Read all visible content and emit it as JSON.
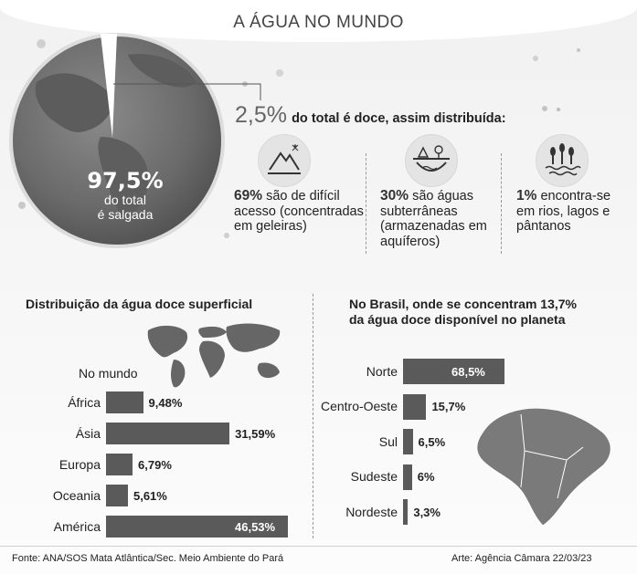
{
  "title": "A ÁGUA NO MUNDO",
  "globe": {
    "percent": "97,5%",
    "line1": "do total",
    "line2": "é salgada"
  },
  "headline": {
    "percent": "2,5%",
    "text": "do total é doce, assim distribuída:"
  },
  "categories": [
    {
      "icon": "glacier-icon",
      "pct": "69%",
      "lines": [
        "são de difícil",
        "acesso (concentradas",
        "em geleiras)"
      ]
    },
    {
      "icon": "aquifer-icon",
      "pct": "30%",
      "lines": [
        "são águas",
        "subterrâneas",
        "(armazenadas em",
        "aquíferos)"
      ]
    },
    {
      "icon": "wetland-icon",
      "pct": "1%",
      "lines": [
        "encontra-se",
        "em rios, lagos e",
        "pântanos"
      ]
    }
  ],
  "left_panel": {
    "title": "Distribuição da água doce superficial",
    "subtitle": "No mundo",
    "map_icon": "world-map-icon"
  },
  "right_panel": {
    "title_line1": "No Brasil, onde se concentram 13,7%",
    "title_line2": "da água doce disponível no planeta",
    "map_icon": "brazil-map-icon"
  },
  "chart_data": [
    {
      "type": "bar",
      "orientation": "horizontal",
      "title": "Distribuição da água doce superficial",
      "subtitle": "No mundo",
      "categories": [
        "África",
        "Ásia",
        "Europa",
        "Oceania",
        "América"
      ],
      "values": [
        9.48,
        31.59,
        6.79,
        5.61,
        46.53
      ],
      "labels": [
        "9,48%",
        "31,59%",
        "6,79%",
        "5,61%",
        "46,53%"
      ],
      "unit": "%"
    },
    {
      "type": "bar",
      "orientation": "horizontal",
      "title": "No Brasil, onde se concentram 13,7% da água doce disponível no planeta",
      "categories": [
        "Norte",
        "Centro-Oeste",
        "Sul",
        "Sudeste",
        "Nordeste"
      ],
      "values": [
        68.5,
        15.7,
        6.5,
        6,
        3.3
      ],
      "labels": [
        "68,5%",
        "15,7%",
        "6,5%",
        "6%",
        "3,3%"
      ],
      "unit": "%"
    }
  ],
  "footer": {
    "source": "Fonte: ANA/SOS Mata Atlântica/Sec. Meio Ambiente do Pará",
    "credit": "Arte: Agência Câmara 22/03/23"
  },
  "colors": {
    "bar": "#5a5a5a",
    "globe": "#6e6e6e",
    "background": "#f3f3f3"
  }
}
